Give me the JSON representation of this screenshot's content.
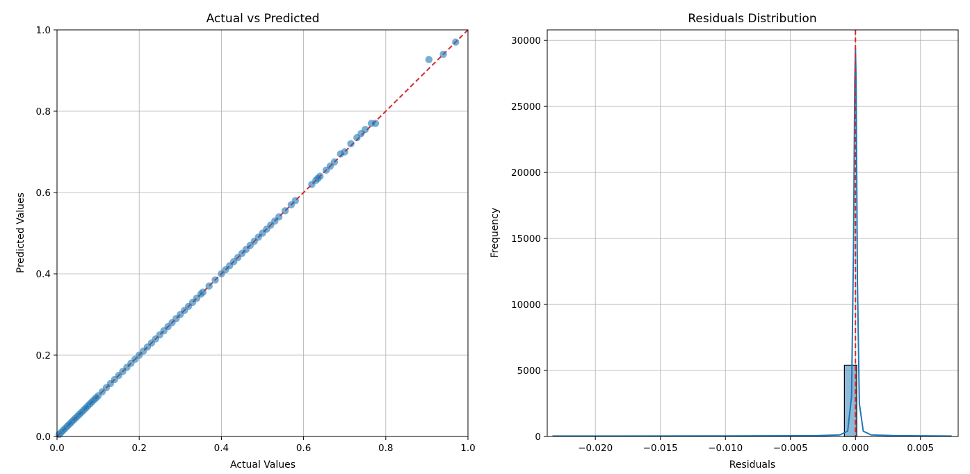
{
  "chart_data": [
    {
      "type": "scatter",
      "title": "Actual vs Predicted",
      "xlabel": "Actual Values",
      "ylabel": "Predicted Values",
      "xlim": [
        0,
        1
      ],
      "ylim": [
        0,
        1
      ],
      "xticks": [
        "0.0",
        "0.2",
        "0.4",
        "0.6",
        "0.8",
        "1.0"
      ],
      "yticks": [
        "0.0",
        "0.2",
        "0.4",
        "0.6",
        "0.8",
        "1.0"
      ],
      "grid": true,
      "point_color": "#1f77b4",
      "reference_line": {
        "from": [
          0,
          0
        ],
        "to": [
          1,
          1
        ],
        "color": "#d62728",
        "style": "dashed"
      },
      "points": {
        "x": [
          0.005,
          0.01,
          0.015,
          0.02,
          0.025,
          0.03,
          0.035,
          0.04,
          0.045,
          0.05,
          0.055,
          0.06,
          0.065,
          0.07,
          0.075,
          0.08,
          0.085,
          0.09,
          0.095,
          0.1,
          0.11,
          0.12,
          0.13,
          0.14,
          0.15,
          0.16,
          0.17,
          0.18,
          0.19,
          0.2,
          0.21,
          0.22,
          0.23,
          0.24,
          0.25,
          0.26,
          0.27,
          0.28,
          0.29,
          0.3,
          0.31,
          0.32,
          0.33,
          0.34,
          0.35,
          0.355,
          0.37,
          0.385,
          0.4,
          0.41,
          0.42,
          0.43,
          0.44,
          0.45,
          0.46,
          0.47,
          0.48,
          0.49,
          0.5,
          0.51,
          0.52,
          0.53,
          0.54,
          0.555,
          0.57,
          0.58,
          0.62,
          0.63,
          0.635,
          0.64,
          0.655,
          0.665,
          0.675,
          0.69,
          0.7,
          0.715,
          0.73,
          0.74,
          0.75,
          0.765,
          0.775,
          0.905,
          0.94,
          0.97
        ],
        "y": [
          0.005,
          0.01,
          0.015,
          0.02,
          0.025,
          0.03,
          0.035,
          0.04,
          0.045,
          0.05,
          0.055,
          0.06,
          0.065,
          0.07,
          0.075,
          0.08,
          0.085,
          0.09,
          0.095,
          0.1,
          0.11,
          0.12,
          0.13,
          0.14,
          0.15,
          0.16,
          0.17,
          0.18,
          0.19,
          0.2,
          0.21,
          0.22,
          0.23,
          0.24,
          0.25,
          0.26,
          0.27,
          0.28,
          0.29,
          0.3,
          0.31,
          0.32,
          0.33,
          0.34,
          0.35,
          0.355,
          0.37,
          0.385,
          0.4,
          0.41,
          0.42,
          0.43,
          0.44,
          0.45,
          0.46,
          0.47,
          0.48,
          0.49,
          0.5,
          0.51,
          0.52,
          0.53,
          0.54,
          0.555,
          0.57,
          0.58,
          0.62,
          0.63,
          0.635,
          0.64,
          0.655,
          0.665,
          0.675,
          0.695,
          0.7,
          0.72,
          0.735,
          0.745,
          0.755,
          0.77,
          0.77,
          0.927,
          0.94,
          0.97
        ]
      }
    },
    {
      "type": "histogram",
      "title": "Residuals Distribution",
      "xlabel": "Residuals",
      "ylabel": "Frequency",
      "xlim": [
        -0.0237,
        0.0079
      ],
      "ylim": [
        0,
        30800
      ],
      "xticks": [
        {
          "value": -0.02,
          "label": "−0.020"
        },
        {
          "value": -0.015,
          "label": "−0.015"
        },
        {
          "value": -0.01,
          "label": "−0.010"
        },
        {
          "value": -0.005,
          "label": "−0.005"
        },
        {
          "value": 0.0,
          "label": "0.000"
        },
        {
          "value": 0.005,
          "label": "0.005"
        }
      ],
      "yticks": [
        {
          "value": 0,
          "label": "0"
        },
        {
          "value": 5000,
          "label": "5000"
        },
        {
          "value": 10000,
          "label": "10000"
        },
        {
          "value": 15000,
          "label": "15000"
        },
        {
          "value": 20000,
          "label": "20000"
        },
        {
          "value": 25000,
          "label": "25000"
        },
        {
          "value": 30000,
          "label": "30000"
        }
      ],
      "grid": true,
      "bar_color": "#1f77b4",
      "bars": [
        {
          "x0": -0.00085,
          "x1": 0.0001,
          "count": 5400
        }
      ],
      "kde": {
        "x": [
          -0.0233,
          -0.01,
          -0.003,
          -0.0012,
          -0.0006,
          -0.0003,
          -0.00015,
          -5e-05,
          0.0,
          5e-05,
          0.00015,
          0.0003,
          0.0006,
          0.0012,
          0.003,
          0.0074
        ],
        "y": [
          30,
          40,
          60,
          120,
          400,
          3000,
          14000,
          27000,
          29400,
          27000,
          12000,
          2500,
          400,
          120,
          60,
          30
        ]
      },
      "reference_line": {
        "x": 0.0,
        "color": "#d62728",
        "style": "dashed"
      }
    }
  ]
}
